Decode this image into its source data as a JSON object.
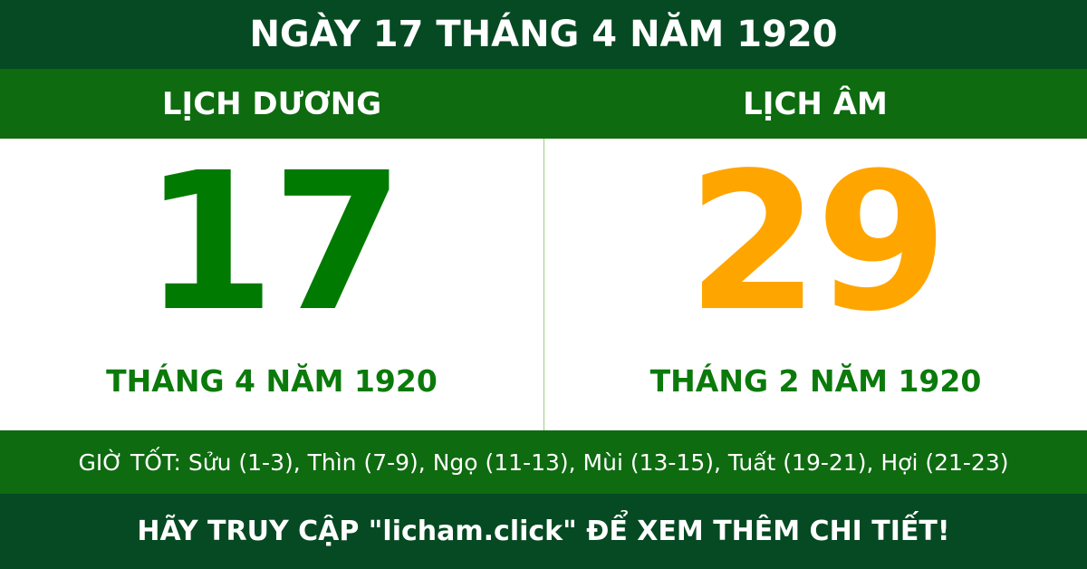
{
  "title": "NGÀY 17 THÁNG 4 NĂM 1920",
  "headers": {
    "solar": "LỊCH DƯƠNG",
    "lunar": "LỊCH ÂM"
  },
  "solar": {
    "day": "17",
    "month_year": "THÁNG 4 NĂM 1920",
    "color": "#007a00"
  },
  "lunar": {
    "day": "29",
    "month_year": "THÁNG 2 NĂM 1920",
    "color": "#ffa500"
  },
  "good_hours": "GIỜ TỐT: Sửu (1-3), Thìn (7-9), Ngọ (11-13), Mùi (13-15), Tuất (19-21), Hợi (21-23)",
  "footer": "HÃY TRUY CẬP \"licham.click\" ĐỂ XEM THÊM CHI TIẾT!"
}
